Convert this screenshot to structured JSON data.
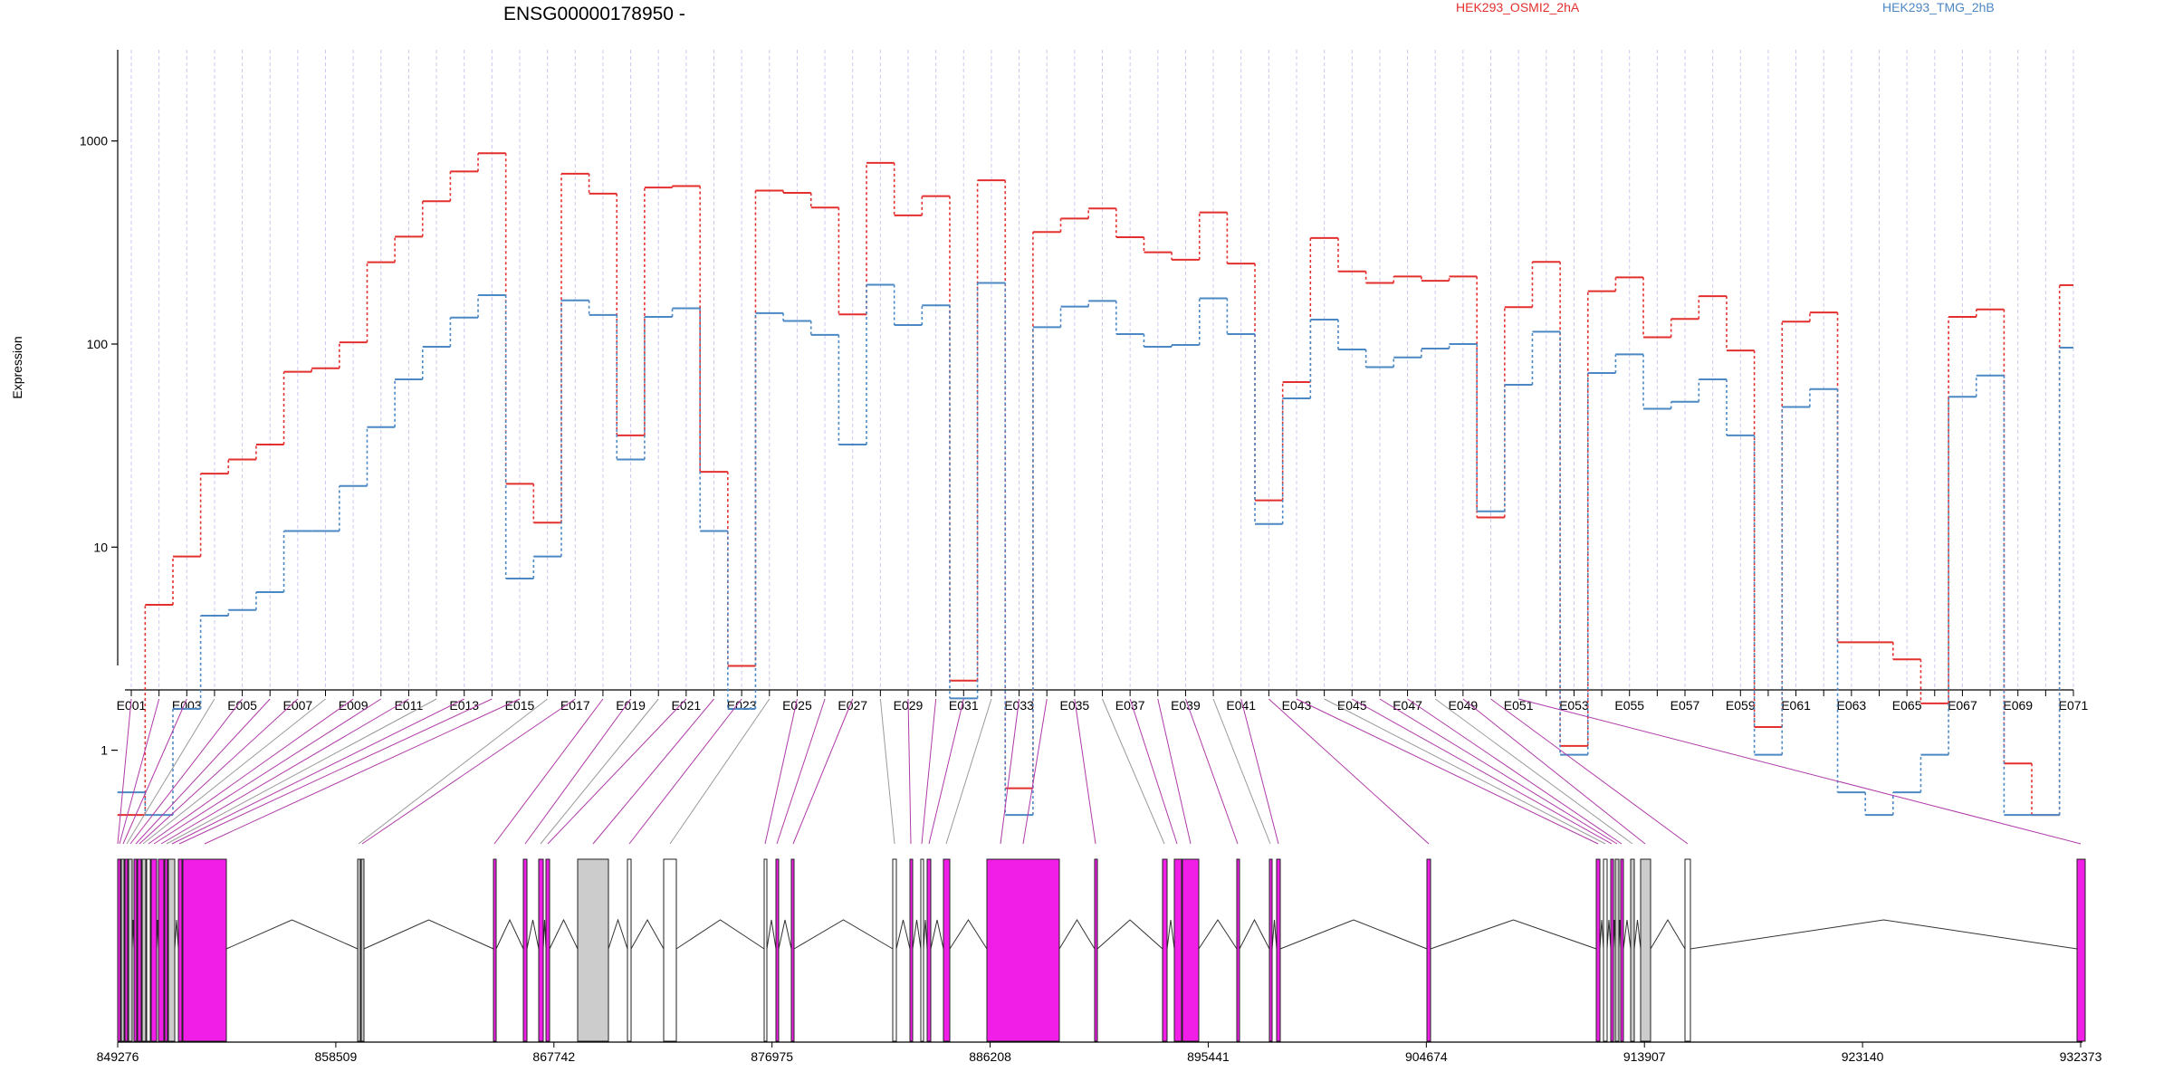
{
  "chart_data": {
    "type": "line",
    "title": "ENSG00000178950 -",
    "xlabel": "",
    "ylabel": "Expression",
    "y_scale": "log",
    "ylim": [
      0.47,
      1000
    ],
    "y_ticks": [
      1,
      10,
      100,
      1000
    ],
    "y_tick_labels": [
      "1",
      "10",
      "100",
      "1000"
    ],
    "grid": true,
    "legend": "top",
    "categories": [
      "E001",
      "E002",
      "E003",
      "E004",
      "E005",
      "E006",
      "E007",
      "E008",
      "E009",
      "E010",
      "E011",
      "E012",
      "E013",
      "E014",
      "E015",
      "E016",
      "E017",
      "E018",
      "E019",
      "E020",
      "E021",
      "E022",
      "E023",
      "E024",
      "E025",
      "E026",
      "E027",
      "E028",
      "E029",
      "E030",
      "E031",
      "E032",
      "E033",
      "E034",
      "E035",
      "E036",
      "E037",
      "E038",
      "E039",
      "E040",
      "E041",
      "E042",
      "E043",
      "E044",
      "E045",
      "E046",
      "E047",
      "E048",
      "E049",
      "E050",
      "E051",
      "E052",
      "E053",
      "E054",
      "E055",
      "E056",
      "E057",
      "E058",
      "E059",
      "E060",
      "E061",
      "E062",
      "E063",
      "E064",
      "E065",
      "E066",
      "E067",
      "E068",
      "E069",
      "E070",
      "E071"
    ],
    "x_tick_labels": [
      "E001",
      "E003",
      "E005",
      "E007",
      "E009",
      "E011",
      "E013",
      "E015",
      "E017",
      "E019",
      "E021",
      "E023",
      "E025",
      "E027",
      "E029",
      "E031",
      "E033",
      "E035",
      "E037",
      "E039",
      "E041",
      "E043",
      "E045",
      "E047",
      "E049",
      "E051",
      "E053",
      "E055",
      "E057",
      "E059",
      "E061",
      "E063",
      "E065",
      "E067",
      "E069",
      "E071"
    ],
    "series": [
      {
        "name": "HEK293_OSMI2_2hA",
        "color": "#e3302f",
        "values": [
          0.48,
          5.2,
          9,
          23,
          27,
          32,
          73,
          76,
          102,
          253,
          338,
          505,
          708,
          870,
          20.5,
          13.2,
          690,
          550,
          35.5,
          590,
          600,
          23.5,
          2.6,
          570,
          555,
          470,
          140,
          780,
          430,
          535,
          2.2,
          640,
          0.65,
          356,
          415,
          465,
          336,
          283,
          260,
          445,
          249,
          17,
          65,
          333,
          228,
          200,
          215,
          205,
          215,
          14,
          152,
          254,
          1.05,
          182,
          213,
          108,
          133,
          172,
          93,
          1.3,
          129,
          143,
          3.4,
          3.4,
          2.8,
          1.7,
          136,
          148,
          0.86,
          0.48,
          195
        ]
      },
      {
        "name": "HEK293_TMG_2hB",
        "color": "#4c88c4",
        "values": [
          0.62,
          0.48,
          1.6,
          4.6,
          4.9,
          6,
          12,
          12,
          20,
          39,
          67,
          97,
          135,
          174,
          7,
          9,
          164,
          139,
          27,
          136,
          150,
          12,
          1.6,
          142,
          130,
          111,
          32,
          196,
          124,
          155,
          1.8,
          200,
          0.48,
          121,
          153,
          163,
          112,
          97,
          99,
          168,
          112,
          13,
          54,
          132,
          94,
          77,
          86,
          95,
          100,
          15,
          63,
          115,
          0.95,
          72,
          89,
          48,
          52,
          67,
          35.5,
          0.95,
          49,
          60,
          0.62,
          0.48,
          0.62,
          0.95,
          55,
          70,
          0.48,
          0.48,
          96
        ]
      }
    ],
    "genomic_axis": {
      "tick_labels": [
        "849276",
        "858509",
        "867742",
        "876975",
        "886208",
        "895441",
        "904674",
        "913907",
        "923140",
        "932373"
      ],
      "ticks": [
        849276,
        858509,
        867742,
        876975,
        886208,
        895441,
        904674,
        913907,
        923140,
        932373
      ],
      "range": [
        849276,
        932373
      ]
    }
  },
  "colors": {
    "exon_highlight": "#f01ee6",
    "exon_grey": "#cccccc",
    "grid_line": "#c8c8f0",
    "connector_highlight": "#b03aa8",
    "connector_plain": "#9a9a9a"
  }
}
